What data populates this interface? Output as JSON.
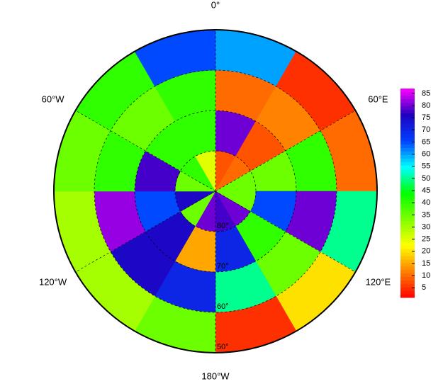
{
  "chart_data": {
    "type": "polar_heatmap",
    "lon_labels": [
      "0°",
      "60°E",
      "120°E",
      "180°W",
      "120°W",
      "60°W"
    ],
    "lat_labels": [
      "80°",
      "70°",
      "60°",
      "50°"
    ],
    "values": [
      [
        8,
        10,
        35,
        35,
        80,
        78,
        80,
        35,
        75,
        35,
        40,
        25
      ],
      [
        80,
        8,
        35,
        65,
        40,
        70,
        15,
        75,
        65,
        78,
        40,
        40
      ],
      [
        10,
        12,
        40,
        80,
        35,
        50,
        70,
        75,
        82,
        40,
        35,
        40
      ],
      [
        60,
        5,
        10,
        50,
        20,
        5,
        35,
        30,
        30,
        35,
        40,
        65
      ]
    ],
    "colormap": [
      "#ff0000",
      "#ff8000",
      "#ffff00",
      "#80ff00",
      "#00ff00",
      "#00ffff",
      "#0040ff",
      "#2000c0",
      "#ff00ff"
    ],
    "clim": [
      1,
      87
    ],
    "cticks": [
      5,
      10,
      15,
      20,
      25,
      30,
      35,
      40,
      45,
      50,
      55,
      60,
      65,
      70,
      75,
      80,
      85
    ]
  }
}
